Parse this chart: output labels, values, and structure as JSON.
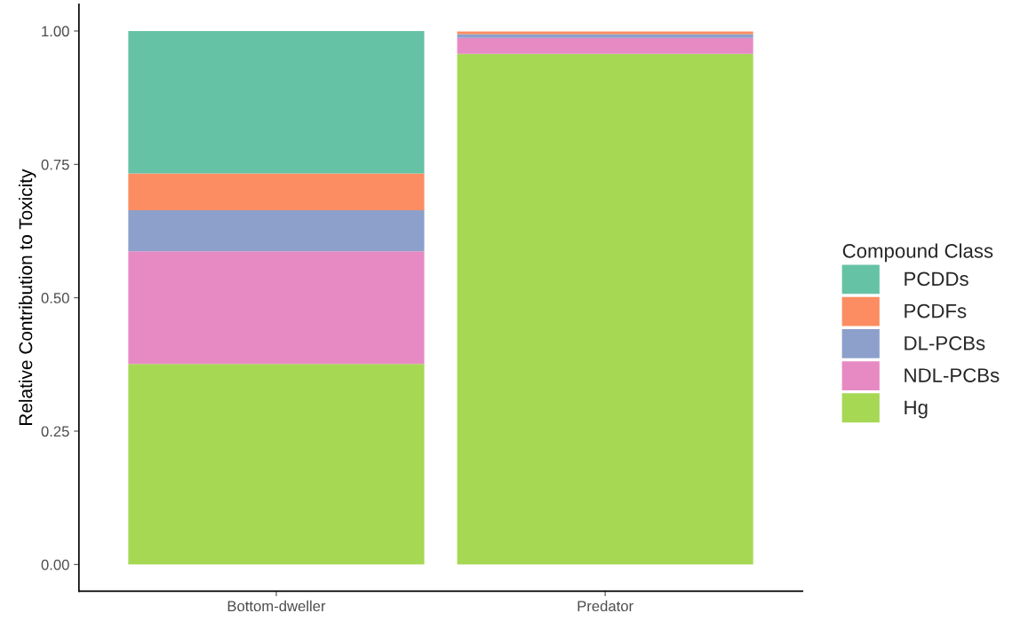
{
  "chart_data": {
    "type": "bar",
    "stacked": true,
    "ylabel": "Relative Contribution to Toxicity",
    "legend_title": "Compound Class",
    "legend": "right",
    "categories": [
      "Bottom-dweller",
      "Predator"
    ],
    "series": [
      {
        "name": "Hg",
        "color": "#a6d854",
        "values": [
          0.376,
          0.957
        ]
      },
      {
        "name": "NDL-PCBs",
        "color": "#e78ac3",
        "values": [
          0.211,
          0.03
        ]
      },
      {
        "name": "DL-PCBs",
        "color": "#8da0cb",
        "values": [
          0.077,
          0.007
        ]
      },
      {
        "name": "PCDFs",
        "color": "#fc8d62",
        "values": [
          0.069,
          0.005
        ]
      },
      {
        "name": "PCDDs",
        "color": "#66c2a5",
        "values": [
          0.267,
          null
        ]
      }
    ],
    "ylim": [
      -0.05,
      1.05
    ],
    "yticks": [
      {
        "value": 0,
        "label": "0.00"
      },
      {
        "value": 0.25,
        "label": "0.25"
      },
      {
        "value": 0.5,
        "label": "0.50"
      },
      {
        "value": 0.75,
        "label": "0.75"
      },
      {
        "value": 1,
        "label": "1.00"
      }
    ],
    "grid": false
  }
}
